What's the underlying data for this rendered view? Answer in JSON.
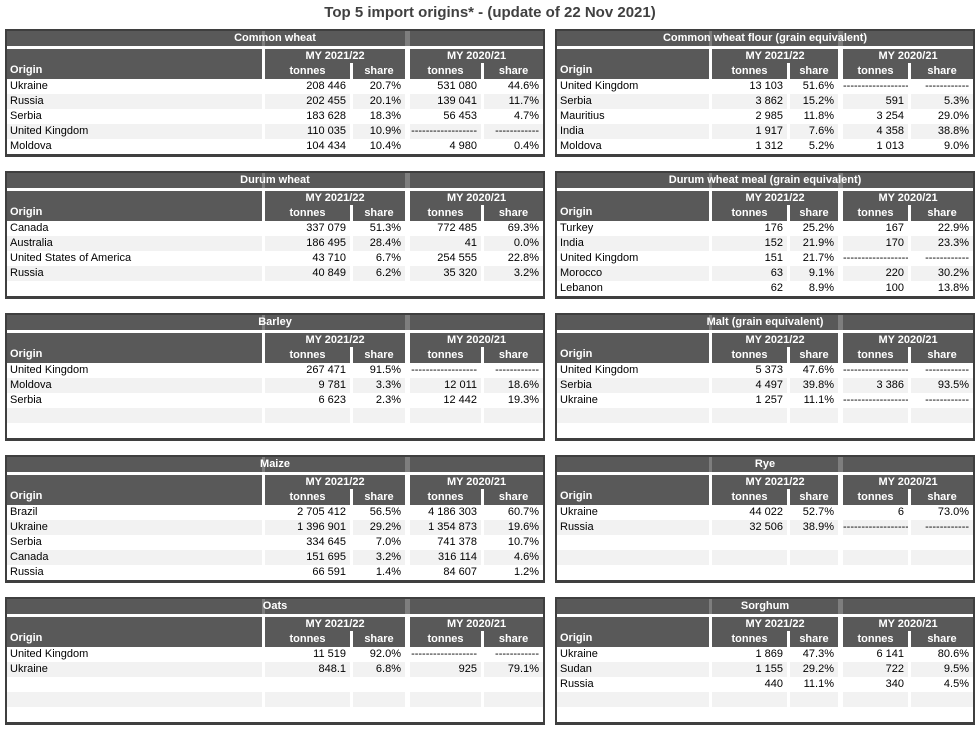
{
  "page_title": "Top 5 import origins* - (update of 22 Nov 2021)",
  "column_headers": {
    "origin": "Origin",
    "period_current": "MY 2021/22",
    "period_previous": "MY 2020/21",
    "tonnes": "tonnes",
    "share": "share"
  },
  "colors": {
    "header_bg": "#595959",
    "table_border": "#3f3f3f",
    "zebra_row_bg": "#f2f2f2",
    "title_text": "#404040"
  },
  "tables": [
    {
      "title": "Common wheat",
      "rows": [
        {
          "origin": "Ukraine",
          "tonnes_2122": "208 446",
          "share_2122": "20.7%",
          "tonnes_2021": "531 080",
          "share_2021": "44.6%"
        },
        {
          "origin": "Russia",
          "tonnes_2122": "202 455",
          "share_2122": "20.1%",
          "tonnes_2021": "139 041",
          "share_2021": "11.7%"
        },
        {
          "origin": "Serbia",
          "tonnes_2122": "183 628",
          "share_2122": "18.3%",
          "tonnes_2021": "56 453",
          "share_2021": "4.7%"
        },
        {
          "origin": "United Kingdom",
          "tonnes_2122": "110 035",
          "share_2122": "10.9%",
          "tonnes_2021": "------------------",
          "share_2021": "------------"
        },
        {
          "origin": "Moldova",
          "tonnes_2122": "104 434",
          "share_2122": "10.4%",
          "tonnes_2021": "4 980",
          "share_2021": "0.4%"
        }
      ]
    },
    {
      "title": "Common wheat flour (grain equivalent)",
      "rows": [
        {
          "origin": "United Kingdom",
          "tonnes_2122": "13 103",
          "share_2122": "51.6%",
          "tonnes_2021": "------------------",
          "share_2021": "------------"
        },
        {
          "origin": "Serbia",
          "tonnes_2122": "3 862",
          "share_2122": "15.2%",
          "tonnes_2021": "591",
          "share_2021": "5.3%"
        },
        {
          "origin": "Mauritius",
          "tonnes_2122": "2 985",
          "share_2122": "11.8%",
          "tonnes_2021": "3 254",
          "share_2021": "29.0%"
        },
        {
          "origin": "India",
          "tonnes_2122": "1 917",
          "share_2122": "7.6%",
          "tonnes_2021": "4 358",
          "share_2021": "38.8%"
        },
        {
          "origin": "Moldova",
          "tonnes_2122": "1 312",
          "share_2122": "5.2%",
          "tonnes_2021": "1 013",
          "share_2021": "9.0%"
        }
      ]
    },
    {
      "title": "Durum wheat",
      "rows": [
        {
          "origin": "Canada",
          "tonnes_2122": "337 079",
          "share_2122": "51.3%",
          "tonnes_2021": "772 485",
          "share_2021": "69.3%"
        },
        {
          "origin": "Australia",
          "tonnes_2122": "186 495",
          "share_2122": "28.4%",
          "tonnes_2021": "41",
          "share_2021": "0.0%"
        },
        {
          "origin": "United States of America",
          "tonnes_2122": "43 710",
          "share_2122": "6.7%",
          "tonnes_2021": "254 555",
          "share_2021": "22.8%"
        },
        {
          "origin": "Russia",
          "tonnes_2122": "40 849",
          "share_2122": "6.2%",
          "tonnes_2021": "35 320",
          "share_2021": "3.2%"
        },
        {
          "origin": "",
          "tonnes_2122": "",
          "share_2122": "",
          "tonnes_2021": "",
          "share_2021": ""
        }
      ]
    },
    {
      "title": "Durum wheat meal (grain equivalent)",
      "rows": [
        {
          "origin": "Turkey",
          "tonnes_2122": "176",
          "share_2122": "25.2%",
          "tonnes_2021": "167",
          "share_2021": "22.9%"
        },
        {
          "origin": "India",
          "tonnes_2122": "152",
          "share_2122": "21.9%",
          "tonnes_2021": "170",
          "share_2021": "23.3%"
        },
        {
          "origin": "United Kingdom",
          "tonnes_2122": "151",
          "share_2122": "21.7%",
          "tonnes_2021": "------------------",
          "share_2021": "------------"
        },
        {
          "origin": "Morocco",
          "tonnes_2122": "63",
          "share_2122": "9.1%",
          "tonnes_2021": "220",
          "share_2021": "30.2%"
        },
        {
          "origin": "Lebanon",
          "tonnes_2122": "62",
          "share_2122": "8.9%",
          "tonnes_2021": "100",
          "share_2021": "13.8%"
        }
      ]
    },
    {
      "title": "Barley",
      "rows": [
        {
          "origin": "United Kingdom",
          "tonnes_2122": "267 471",
          "share_2122": "91.5%",
          "tonnes_2021": "------------------",
          "share_2021": "------------"
        },
        {
          "origin": "Moldova",
          "tonnes_2122": "9 781",
          "share_2122": "3.3%",
          "tonnes_2021": "12 011",
          "share_2021": "18.6%"
        },
        {
          "origin": "Serbia",
          "tonnes_2122": "6 623",
          "share_2122": "2.3%",
          "tonnes_2021": "12 442",
          "share_2021": "19.3%"
        },
        {
          "origin": "",
          "tonnes_2122": "",
          "share_2122": "",
          "tonnes_2021": "",
          "share_2021": ""
        },
        {
          "origin": "",
          "tonnes_2122": "",
          "share_2122": "",
          "tonnes_2021": "",
          "share_2021": ""
        }
      ]
    },
    {
      "title": "Malt (grain equivalent)",
      "rows": [
        {
          "origin": "United Kingdom",
          "tonnes_2122": "5 373",
          "share_2122": "47.6%",
          "tonnes_2021": "------------------",
          "share_2021": "------------"
        },
        {
          "origin": "Serbia",
          "tonnes_2122": "4 497",
          "share_2122": "39.8%",
          "tonnes_2021": "3 386",
          "share_2021": "93.5%"
        },
        {
          "origin": "Ukraine",
          "tonnes_2122": "1 257",
          "share_2122": "11.1%",
          "tonnes_2021": "------------------",
          "share_2021": "------------"
        },
        {
          "origin": "",
          "tonnes_2122": "",
          "share_2122": "",
          "tonnes_2021": "",
          "share_2021": ""
        },
        {
          "origin": "",
          "tonnes_2122": "",
          "share_2122": "",
          "tonnes_2021": "",
          "share_2021": ""
        }
      ]
    },
    {
      "title": "Maize",
      "rows": [
        {
          "origin": "Brazil",
          "tonnes_2122": "2 705 412",
          "share_2122": "56.5%",
          "tonnes_2021": "4 186 303",
          "share_2021": "60.7%"
        },
        {
          "origin": "Ukraine",
          "tonnes_2122": "1 396 901",
          "share_2122": "29.2%",
          "tonnes_2021": "1 354 873",
          "share_2021": "19.6%"
        },
        {
          "origin": "Serbia",
          "tonnes_2122": "334 645",
          "share_2122": "7.0%",
          "tonnes_2021": "741 378",
          "share_2021": "10.7%"
        },
        {
          "origin": "Canada",
          "tonnes_2122": "151 695",
          "share_2122": "3.2%",
          "tonnes_2021": "316 114",
          "share_2021": "4.6%"
        },
        {
          "origin": "Russia",
          "tonnes_2122": "66 591",
          "share_2122": "1.4%",
          "tonnes_2021": "84 607",
          "share_2021": "1.2%"
        }
      ]
    },
    {
      "title": "Rye",
      "rows": [
        {
          "origin": "Ukraine",
          "tonnes_2122": "44 022",
          "share_2122": "52.7%",
          "tonnes_2021": "6",
          "share_2021": "73.0%"
        },
        {
          "origin": "Russia",
          "tonnes_2122": "32 506",
          "share_2122": "38.9%",
          "tonnes_2021": "------------------",
          "share_2021": "------------"
        },
        {
          "origin": "",
          "tonnes_2122": "",
          "share_2122": "",
          "tonnes_2021": "",
          "share_2021": ""
        },
        {
          "origin": "",
          "tonnes_2122": "",
          "share_2122": "",
          "tonnes_2021": "",
          "share_2021": ""
        },
        {
          "origin": "",
          "tonnes_2122": "",
          "share_2122": "",
          "tonnes_2021": "",
          "share_2021": ""
        }
      ]
    },
    {
      "title": "Oats",
      "rows": [
        {
          "origin": "United Kingdom",
          "tonnes_2122": "11 519",
          "share_2122": "92.0%",
          "tonnes_2021": "------------------",
          "share_2021": "------------"
        },
        {
          "origin": "Ukraine",
          "tonnes_2122": "848.1",
          "share_2122": "6.8%",
          "tonnes_2021": "925",
          "share_2021": "79.1%"
        },
        {
          "origin": "",
          "tonnes_2122": "",
          "share_2122": "",
          "tonnes_2021": "",
          "share_2021": ""
        },
        {
          "origin": "",
          "tonnes_2122": "",
          "share_2122": "",
          "tonnes_2021": "",
          "share_2021": ""
        },
        {
          "origin": "",
          "tonnes_2122": "",
          "share_2122": "",
          "tonnes_2021": "",
          "share_2021": ""
        }
      ]
    },
    {
      "title": "Sorghum",
      "rows": [
        {
          "origin": "Ukraine",
          "tonnes_2122": "1 869",
          "share_2122": "47.3%",
          "tonnes_2021": "6 141",
          "share_2021": "80.6%"
        },
        {
          "origin": "Sudan",
          "tonnes_2122": "1 155",
          "share_2122": "29.2%",
          "tonnes_2021": "722",
          "share_2021": "9.5%"
        },
        {
          "origin": "Russia",
          "tonnes_2122": "440",
          "share_2122": "11.1%",
          "tonnes_2021": "340",
          "share_2021": "4.5%"
        },
        {
          "origin": "",
          "tonnes_2122": "",
          "share_2122": "",
          "tonnes_2021": "",
          "share_2021": ""
        },
        {
          "origin": "",
          "tonnes_2122": "",
          "share_2122": "",
          "tonnes_2021": "",
          "share_2021": ""
        }
      ]
    }
  ]
}
